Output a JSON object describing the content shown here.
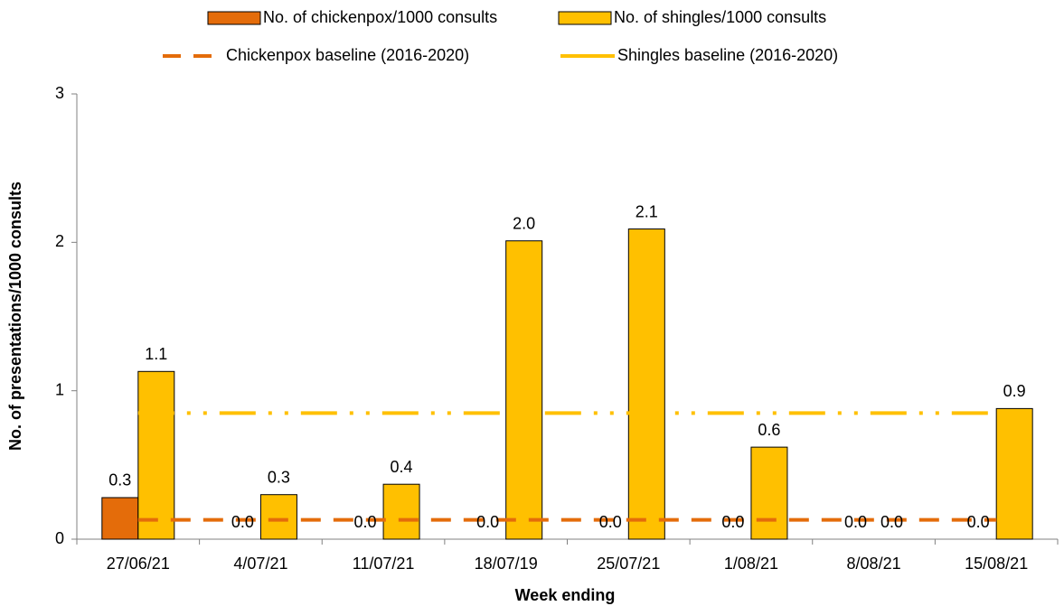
{
  "chart_data": {
    "type": "bar",
    "xlabel": "Week ending",
    "ylabel": "No. of presentations/1000  consults",
    "categories": [
      "27/06/21",
      "4/07/21",
      "11/07/21",
      "18/07/19",
      "25/07/21",
      "1/08/21",
      "8/08/21",
      "15/08/21"
    ],
    "ylim": [
      0,
      3
    ],
    "yticks": [
      0,
      1,
      2,
      3
    ],
    "series": [
      {
        "name": "No. of chickenpox/1000 consults",
        "type": "bar",
        "color": "#e46c0a",
        "values": [
          0.28,
          0,
          0,
          0,
          0,
          0,
          0,
          0
        ],
        "value_labels": [
          "0.3",
          "0.0",
          "0.0",
          "0.0",
          "0.0",
          "0.0",
          "0.0",
          "0.0"
        ]
      },
      {
        "name": "No. of shingles/1000 consults",
        "type": "bar",
        "color": "#ffc000",
        "values": [
          1.13,
          0.3,
          0.37,
          2.01,
          2.09,
          0.62,
          0,
          0.88
        ],
        "value_labels": [
          "1.1",
          "0.3",
          "0.4",
          "2.0",
          "2.1",
          "0.6",
          "0.0",
          "0.9"
        ]
      },
      {
        "name": "Chickenpox baseline (2016-2020)",
        "type": "line",
        "color": "#e46c0a",
        "dash": "22 14",
        "values": [
          0.13,
          0.13,
          0.13,
          0.13,
          0.13,
          0.13,
          0.13,
          0.13
        ]
      },
      {
        "name": "Shingles baseline (2016-2020)",
        "type": "line",
        "color": "#ffc000",
        "dash": "40 14 4 14 4 14",
        "values": [
          0.85,
          0.85,
          0.85,
          0.85,
          0.85,
          0.85,
          0.85,
          0.85
        ]
      }
    ]
  }
}
